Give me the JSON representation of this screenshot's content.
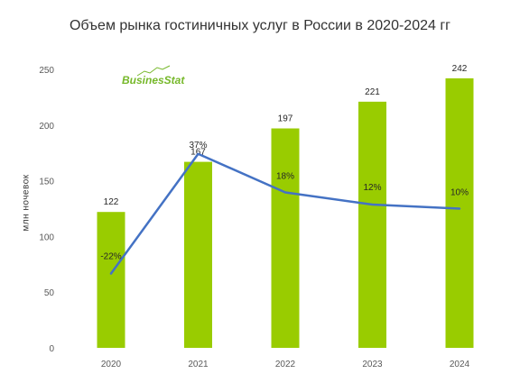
{
  "title": "Объем рынка гостиничных услуг в России в 2020-2024 гг",
  "logo_text": "BusinesStat",
  "colors": {
    "bar": "#99cc00",
    "line": "#4472c4",
    "text": "#262626",
    "logo": "#76b82a"
  },
  "chart_data": {
    "type": "bar",
    "title": "Объем рынка гостиничных услуг в России в 2020-2024 гг",
    "xlabel": "",
    "ylabel": "млн ночевок",
    "categories": [
      "2020",
      "2021",
      "2022",
      "2023",
      "2024"
    ],
    "ylim": [
      0,
      250
    ],
    "yticks": [
      "0",
      "50",
      "100",
      "150",
      "200",
      "250"
    ],
    "grid": false,
    "legend": "none",
    "series": [
      {
        "type": "bar",
        "values": [
          122,
          167,
          197,
          221,
          242
        ],
        "labels": [
          "122",
          "167",
          "197",
          "221",
          "242"
        ]
      },
      {
        "type": "line",
        "values": [
          -22,
          37,
          18,
          12,
          10
        ],
        "labels": [
          "-22%",
          "37%",
          "18%",
          "12%",
          "10%"
        ]
      }
    ]
  }
}
